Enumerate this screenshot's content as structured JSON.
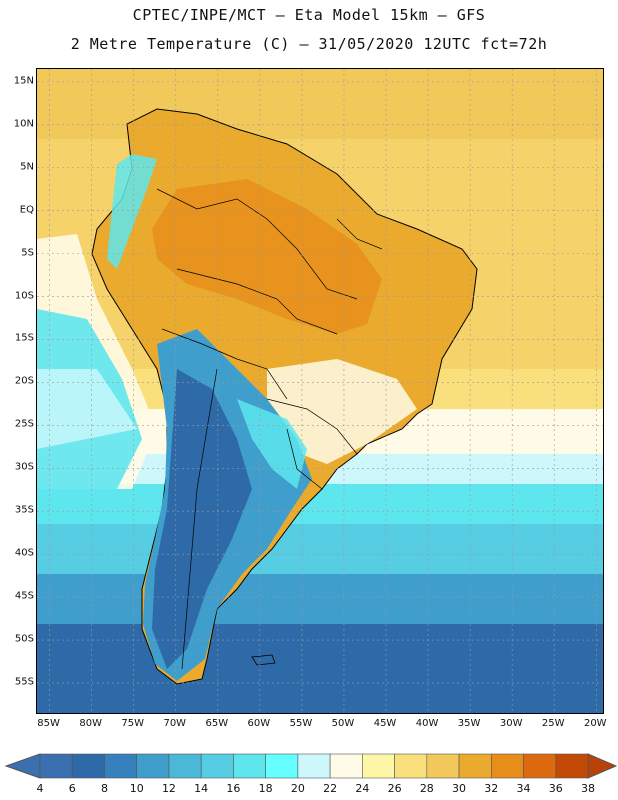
{
  "header": {
    "title_line1": "CPTEC/INPE/MCT –  Eta Model 15km – GFS",
    "title_line2": "2 Metre Temperature (C) – 31/05/2020 12UTC fct=72h"
  },
  "map": {
    "region": "South America",
    "variable": "2 Metre Temperature",
    "units": "C",
    "lat_labels": [
      "15N",
      "10N",
      "5N",
      "EQ",
      "5S",
      "10S",
      "15S",
      "20S",
      "25S",
      "30S",
      "35S",
      "40S",
      "45S",
      "50S",
      "55S"
    ],
    "lat_values": [
      15,
      10,
      5,
      0,
      -5,
      -10,
      -15,
      -20,
      -25,
      -30,
      -35,
      -40,
      -45,
      -50,
      -55
    ],
    "lon_labels": [
      "85W",
      "80W",
      "75W",
      "70W",
      "65W",
      "60W",
      "55W",
      "50W",
      "45W",
      "40W",
      "35W",
      "30W",
      "25W",
      "20W"
    ],
    "lon_values": [
      -85,
      -80,
      -75,
      -70,
      -65,
      -60,
      -55,
      -50,
      -45,
      -40,
      -35,
      -30,
      -25,
      -20
    ]
  },
  "colorbar": {
    "labels": [
      "4",
      "6",
      "8",
      "10",
      "12",
      "14",
      "16",
      "18",
      "20",
      "22",
      "24",
      "26",
      "28",
      "30",
      "32",
      "34",
      "36",
      "38"
    ],
    "colors": [
      "#3a6fb0",
      "#2f6aa8",
      "#3580bd",
      "#3f9ecb",
      "#4cb8d8",
      "#56cde2",
      "#5ee6ee",
      "#66ffff",
      "#cdf7fb",
      "#fffbe6",
      "#fff7a8",
      "#f9e07c",
      "#f1c95a",
      "#eaaa2e",
      "#e68d1a",
      "#dd6a0e",
      "#c24a06"
    ],
    "low_color": "#3a6fb0",
    "high_color": "#b8420a"
  },
  "colors": {
    "ocean_tropical": "#f6d36a",
    "ocean_subtropical": "#fff6cc",
    "ocean_mid": "#56cde2",
    "ocean_cold": "#2f6aa8"
  }
}
